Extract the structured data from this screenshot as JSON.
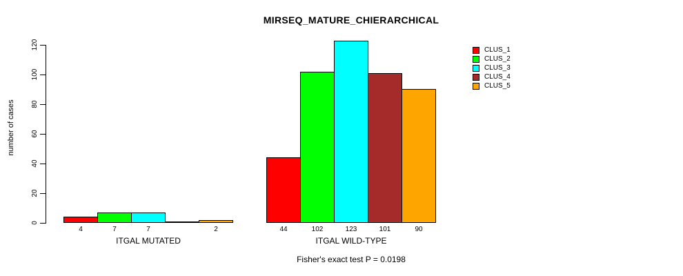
{
  "title": "MIRSEQ_MATURE_CHIERARCHICAL",
  "annotation": "Fisher's exact test P = 0.0198",
  "chart_data": {
    "type": "bar",
    "title": "MIRSEQ_MATURE_CHIERARCHICAL",
    "ylabel": "number of cases",
    "xlabel": "",
    "ylim": [
      0,
      130
    ],
    "yticks": [
      0,
      20,
      40,
      60,
      80,
      100,
      120
    ],
    "grid": false,
    "legend_position": "topright",
    "axis_color": "#000000",
    "background": "#FFFFFF",
    "categories": [
      "ITGAL MUTATED",
      "ITGAL WILD-TYPE"
    ],
    "series": [
      {
        "name": "CLUS_1",
        "color": "#FF0000",
        "values": [
          4,
          44
        ]
      },
      {
        "name": "CLUS_2",
        "color": "#00FF00",
        "values": [
          7,
          102
        ]
      },
      {
        "name": "CLUS_3",
        "color": "#00FFFF",
        "values": [
          7,
          123
        ]
      },
      {
        "name": "CLUS_4",
        "color": "#A52A2A",
        "values": [
          0,
          101
        ]
      },
      {
        "name": "CLUS_5",
        "color": "#FFA500",
        "values": [
          2,
          90
        ]
      }
    ],
    "bar_labels": [
      [
        "4",
        "7",
        "7",
        "",
        "2"
      ],
      [
        "44",
        "102",
        "123",
        "101",
        "90"
      ]
    ],
    "annotation": "Fisher's exact test P = 0.0198"
  }
}
